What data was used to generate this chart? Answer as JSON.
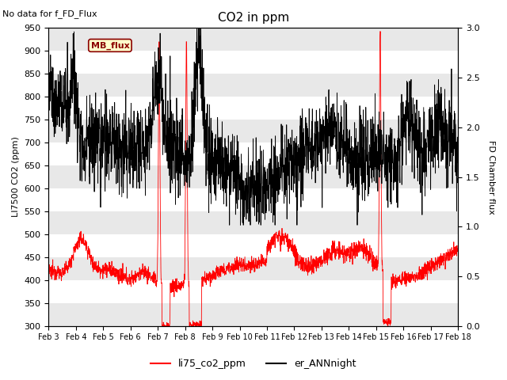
{
  "title": "CO2 in ppm",
  "ylabel_left": "LI7500 CO2 (ppm)",
  "ylabel_right": "FD Chamber flux",
  "ylim_left": [
    300,
    950
  ],
  "ylim_right": [
    0.0,
    3.0
  ],
  "yticks_left": [
    300,
    350,
    400,
    450,
    500,
    550,
    600,
    650,
    700,
    750,
    800,
    850,
    900,
    950
  ],
  "yticks_right": [
    0.0,
    0.5,
    1.0,
    1.5,
    2.0,
    2.5,
    3.0
  ],
  "xtick_labels": [
    "Feb 3",
    "Feb 4",
    "Feb 5",
    "Feb 6",
    "Feb 7",
    "Feb 8",
    "Feb 9",
    "Feb 10",
    "Feb 11",
    "Feb 12",
    "Feb 13",
    "Feb 14",
    "Feb 15",
    "Feb 16",
    "Feb 17",
    "Feb 18"
  ],
  "annotation_text": "No data for f_FD_Flux",
  "mb_flux_label": "MB_flux",
  "legend_labels": [
    "li75_co2_ppm",
    "er_ANNnight"
  ],
  "line_colors": [
    "red",
    "black"
  ],
  "background_color": "#ffffff"
}
